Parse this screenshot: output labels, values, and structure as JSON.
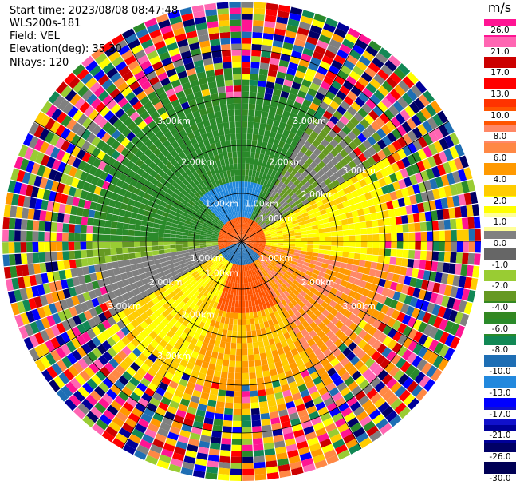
{
  "header": {
    "start_time": "Start time: 2023/08/08 08:47:48",
    "instrument": "WLS200s-181",
    "field": "Field: VEL",
    "elevation": "Elevation(deg): 35.30",
    "nrays": "NRays: 120"
  },
  "chart_data": {
    "type": "polar-ppi",
    "field": "VEL",
    "unit": "m/s",
    "nrays": 120,
    "ring_labels": [
      "1.00km",
      "2.00km",
      "3.00km"
    ],
    "colorbar": {
      "title": "m/s",
      "ticks": [
        "26.0",
        "21.0",
        "17.0",
        "13.0",
        "10.0",
        "8.0",
        "6.0",
        "4.0",
        "2.0",
        "1.0",
        "0.0",
        "-1.0",
        "-2.0",
        "-4.0",
        "-6.0",
        "-8.0",
        "-10.0",
        "-13.0",
        "-17.0",
        "-21.0",
        "-26.0",
        "-30.0"
      ],
      "colors": [
        "#ff1493",
        "#ff66b2",
        "#cc0000",
        "#ff0000",
        "#ff3300",
        "#ff5500",
        "#ff8866",
        "#ff8844",
        "#ff9900",
        "#ffcc00",
        "#ffff00",
        "#ffff99",
        "#808080",
        "#666666",
        "#99cc33",
        "#669922",
        "#338822",
        "#2a8a2a",
        "#118855",
        "#1e6eb4",
        "#2288dd",
        "#0000ff",
        "#1111cc",
        "#000099",
        "#000066",
        "#000055"
      ]
    }
  }
}
